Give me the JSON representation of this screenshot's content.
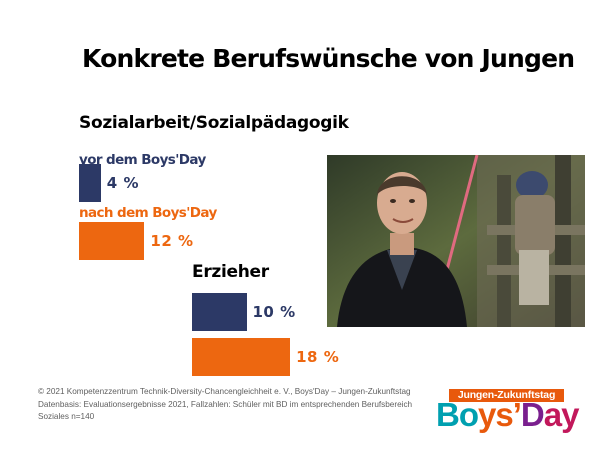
{
  "title": "Konkrete Berufswünsche von Jungen",
  "colors": {
    "before": "#2c3966",
    "after": "#ed6710",
    "text": "#000000",
    "footer": "#5f5f5f",
    "logo_top_bg": "#e8590c"
  },
  "chart_data": {
    "type": "bar",
    "orientation": "horizontal",
    "categories": [
      "Sozialarbeit/Sozialpädagogik",
      "Erzieher"
    ],
    "series": [
      {
        "name": "vor dem Boys'Day",
        "values": [
          4,
          10
        ],
        "labels": [
          "4 %",
          "10 %"
        ]
      },
      {
        "name": "nach dem Boys'Day",
        "values": [
          12,
          18
        ],
        "labels": [
          "12 %",
          "18 %"
        ]
      }
    ],
    "unit": "%",
    "grid": false,
    "legend": "inline labels above bars of first category"
  },
  "footer": {
    "line1": "© 2021 Kompetenzzentrum Technik-Diversity-Chancengleichheit e. V., Boys'Day – Jungen-Zukunftstag",
    "line2": "Datenbasis: Evaluationsergebnisse 2021, Fallzahlen: Schüler mit BD im entsprechenden Berufsbereich",
    "line3": "Soziales n=140"
  },
  "logo": {
    "tagline": "Jungen-Zukunftstag",
    "letters": [
      "B",
      "o",
      "y",
      "s",
      "’",
      "D",
      "a",
      "y"
    ],
    "letter_colors": [
      "#00a0b0",
      "#00a0b0",
      "#e8590c",
      "#e8590c",
      "#e8590c",
      "#7a1f8e",
      "#c2185b",
      "#c2185b"
    ]
  }
}
